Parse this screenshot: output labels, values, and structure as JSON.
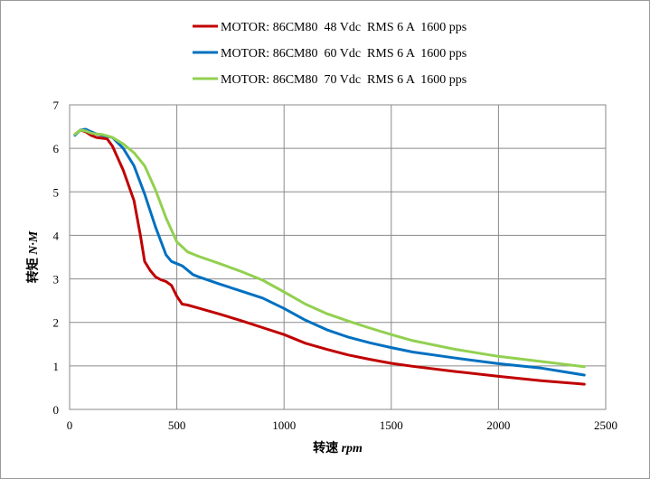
{
  "chart_data": {
    "type": "line",
    "xlabel": "转速 rpm",
    "ylabel": "转矩 N·M",
    "xlim": [
      0,
      2500
    ],
    "ylim": [
      0,
      7
    ],
    "x_ticks": [
      "0",
      "500",
      "1000",
      "1500",
      "2000",
      "2500"
    ],
    "y_ticks": [
      "0",
      "1",
      "2",
      "3",
      "4",
      "5",
      "6",
      "7"
    ],
    "grid": true,
    "legend_position": "top",
    "series": [
      {
        "name": "MOTOR: 86CM80  48 Vdc  RMS 6 A  1600 pps",
        "color": "#c00000",
        "points": [
          [
            25,
            6.32
          ],
          [
            50,
            6.42
          ],
          [
            75,
            6.38
          ],
          [
            100,
            6.3
          ],
          [
            125,
            6.25
          ],
          [
            175,
            6.22
          ],
          [
            200,
            6.05
          ],
          [
            250,
            5.5
          ],
          [
            300,
            4.8
          ],
          [
            330,
            4.0
          ],
          [
            350,
            3.4
          ],
          [
            375,
            3.2
          ],
          [
            400,
            3.05
          ],
          [
            425,
            2.98
          ],
          [
            450,
            2.94
          ],
          [
            475,
            2.85
          ],
          [
            500,
            2.6
          ],
          [
            525,
            2.42
          ],
          [
            550,
            2.4
          ],
          [
            600,
            2.33
          ],
          [
            700,
            2.19
          ],
          [
            800,
            2.04
          ],
          [
            900,
            1.88
          ],
          [
            1000,
            1.72
          ],
          [
            1100,
            1.52
          ],
          [
            1200,
            1.38
          ],
          [
            1300,
            1.25
          ],
          [
            1400,
            1.15
          ],
          [
            1500,
            1.06
          ],
          [
            1600,
            0.99
          ],
          [
            1800,
            0.87
          ],
          [
            2000,
            0.76
          ],
          [
            2200,
            0.66
          ],
          [
            2400,
            0.58
          ]
        ]
      },
      {
        "name": "MOTOR: 86CM80  60 Vdc  RMS 6 A  1600 pps",
        "color": "#0070c0",
        "points": [
          [
            25,
            6.3
          ],
          [
            50,
            6.42
          ],
          [
            75,
            6.44
          ],
          [
            100,
            6.38
          ],
          [
            125,
            6.33
          ],
          [
            150,
            6.3
          ],
          [
            200,
            6.25
          ],
          [
            250,
            6.0
          ],
          [
            300,
            5.6
          ],
          [
            350,
            4.95
          ],
          [
            400,
            4.2
          ],
          [
            450,
            3.55
          ],
          [
            475,
            3.4
          ],
          [
            500,
            3.35
          ],
          [
            525,
            3.3
          ],
          [
            550,
            3.2
          ],
          [
            575,
            3.1
          ],
          [
            600,
            3.05
          ],
          [
            700,
            2.88
          ],
          [
            800,
            2.72
          ],
          [
            900,
            2.56
          ],
          [
            1000,
            2.32
          ],
          [
            1100,
            2.05
          ],
          [
            1200,
            1.83
          ],
          [
            1300,
            1.66
          ],
          [
            1400,
            1.53
          ],
          [
            1500,
            1.42
          ],
          [
            1600,
            1.32
          ],
          [
            1800,
            1.18
          ],
          [
            2000,
            1.05
          ],
          [
            2200,
            0.95
          ],
          [
            2400,
            0.79
          ]
        ]
      },
      {
        "name": "MOTOR: 86CM80  70 Vdc  RMS 6 A  1600 pps",
        "color": "#92d050",
        "points": [
          [
            25,
            6.32
          ],
          [
            50,
            6.42
          ],
          [
            75,
            6.4
          ],
          [
            100,
            6.35
          ],
          [
            125,
            6.33
          ],
          [
            150,
            6.32
          ],
          [
            200,
            6.25
          ],
          [
            250,
            6.1
          ],
          [
            300,
            5.9
          ],
          [
            350,
            5.6
          ],
          [
            400,
            5.05
          ],
          [
            450,
            4.4
          ],
          [
            500,
            3.85
          ],
          [
            550,
            3.62
          ],
          [
            600,
            3.52
          ],
          [
            700,
            3.35
          ],
          [
            800,
            3.17
          ],
          [
            900,
            2.97
          ],
          [
            1000,
            2.7
          ],
          [
            1100,
            2.42
          ],
          [
            1200,
            2.2
          ],
          [
            1300,
            2.03
          ],
          [
            1400,
            1.87
          ],
          [
            1500,
            1.72
          ],
          [
            1600,
            1.58
          ],
          [
            1800,
            1.38
          ],
          [
            2000,
            1.22
          ],
          [
            2200,
            1.1
          ],
          [
            2400,
            0.98
          ]
        ]
      }
    ]
  }
}
